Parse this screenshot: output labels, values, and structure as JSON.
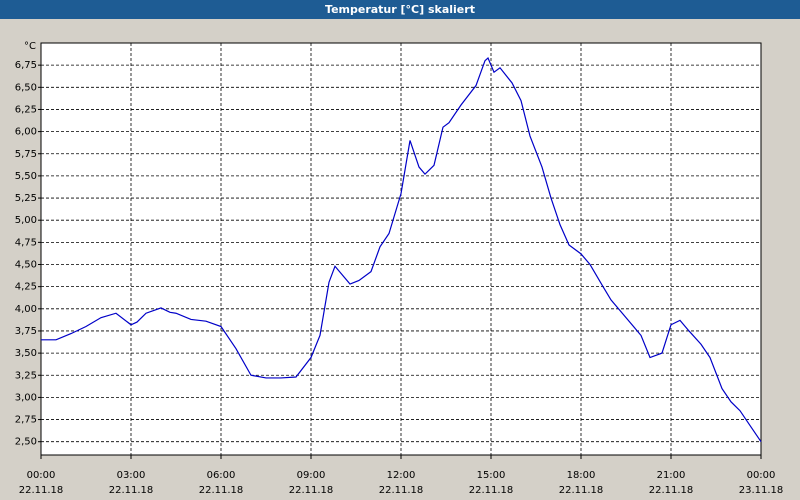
{
  "chart_data": {
    "type": "line",
    "title": "Temperatur [°C] skaliert",
    "y_unit": "°C",
    "x": [
      0,
      0.5,
      1,
      1.5,
      2,
      2.5,
      3,
      3.2,
      3.5,
      4,
      4.3,
      4.5,
      5,
      5.5,
      6,
      6.5,
      7,
      7.5,
      8,
      8.5,
      9,
      9.3,
      9.6,
      9.8,
      10,
      10.3,
      10.6,
      11,
      11.3,
      11.6,
      12,
      12.3,
      12.6,
      12.8,
      13.1,
      13.4,
      13.6,
      14,
      14.5,
      14.8,
      14.9,
      15.1,
      15.3,
      15.7,
      16,
      16.3,
      16.7,
      17,
      17.3,
      17.6,
      18,
      18.3,
      18.7,
      19,
      19.5,
      20,
      20.3,
      20.7,
      21,
      21.3,
      21.6,
      22,
      22.3,
      22.7,
      23,
      23.3,
      23.7,
      24
    ],
    "series": [
      {
        "name": "Temperatur",
        "color": "#0000c8",
        "values": [
          3.65,
          3.65,
          3.72,
          3.8,
          3.9,
          3.95,
          3.82,
          3.85,
          3.95,
          4.01,
          3.96,
          3.95,
          3.88,
          3.86,
          3.8,
          3.55,
          3.25,
          3.22,
          3.22,
          3.23,
          3.45,
          3.7,
          4.3,
          4.48,
          4.4,
          4.28,
          4.32,
          4.42,
          4.7,
          4.85,
          5.3,
          5.9,
          5.6,
          5.52,
          5.62,
          6.05,
          6.1,
          6.3,
          6.52,
          6.8,
          6.83,
          6.67,
          6.72,
          6.55,
          6.35,
          5.95,
          5.6,
          5.25,
          4.95,
          4.72,
          4.62,
          4.5,
          4.27,
          4.1,
          3.9,
          3.7,
          3.45,
          3.5,
          3.82,
          3.87,
          3.75,
          3.6,
          3.45,
          3.1,
          2.95,
          2.85,
          2.65,
          2.5
        ]
      }
    ],
    "xlim": [
      0,
      24
    ],
    "xticks": [
      {
        "value": 0,
        "label": "00:00\n22.11.18"
      },
      {
        "value": 3,
        "label": "03:00\n22.11.18"
      },
      {
        "value": 6,
        "label": "06:00\n22.11.18"
      },
      {
        "value": 9,
        "label": "09:00\n22.11.18"
      },
      {
        "value": 12,
        "label": "12:00\n22.11.18"
      },
      {
        "value": 15,
        "label": "15:00\n22.11.18"
      },
      {
        "value": 18,
        "label": "18:00\n22.11.18"
      },
      {
        "value": 21,
        "label": "21:00\n22.11.18"
      },
      {
        "value": 24,
        "label": "00:00\n23.11.18"
      }
    ],
    "ylim": [
      2.35,
      7.0
    ],
    "yticks": [
      {
        "value": 2.5,
        "label": "2,50"
      },
      {
        "value": 2.75,
        "label": "2,75"
      },
      {
        "value": 3.0,
        "label": "3,00"
      },
      {
        "value": 3.25,
        "label": "3,25"
      },
      {
        "value": 3.5,
        "label": "3,50"
      },
      {
        "value": 3.75,
        "label": "3,75"
      },
      {
        "value": 4.0,
        "label": "4,00"
      },
      {
        "value": 4.25,
        "label": "4,25"
      },
      {
        "value": 4.5,
        "label": "4,50"
      },
      {
        "value": 4.75,
        "label": "4,75"
      },
      {
        "value": 5.0,
        "label": "5,00"
      },
      {
        "value": 5.25,
        "label": "5,25"
      },
      {
        "value": 5.5,
        "label": "5,50"
      },
      {
        "value": 5.75,
        "label": "5,75"
      },
      {
        "value": 6.0,
        "label": "6,00"
      },
      {
        "value": 6.25,
        "label": "6,25"
      },
      {
        "value": 6.5,
        "label": "6,50"
      },
      {
        "value": 6.75,
        "label": "6,75"
      }
    ],
    "grid": true
  }
}
